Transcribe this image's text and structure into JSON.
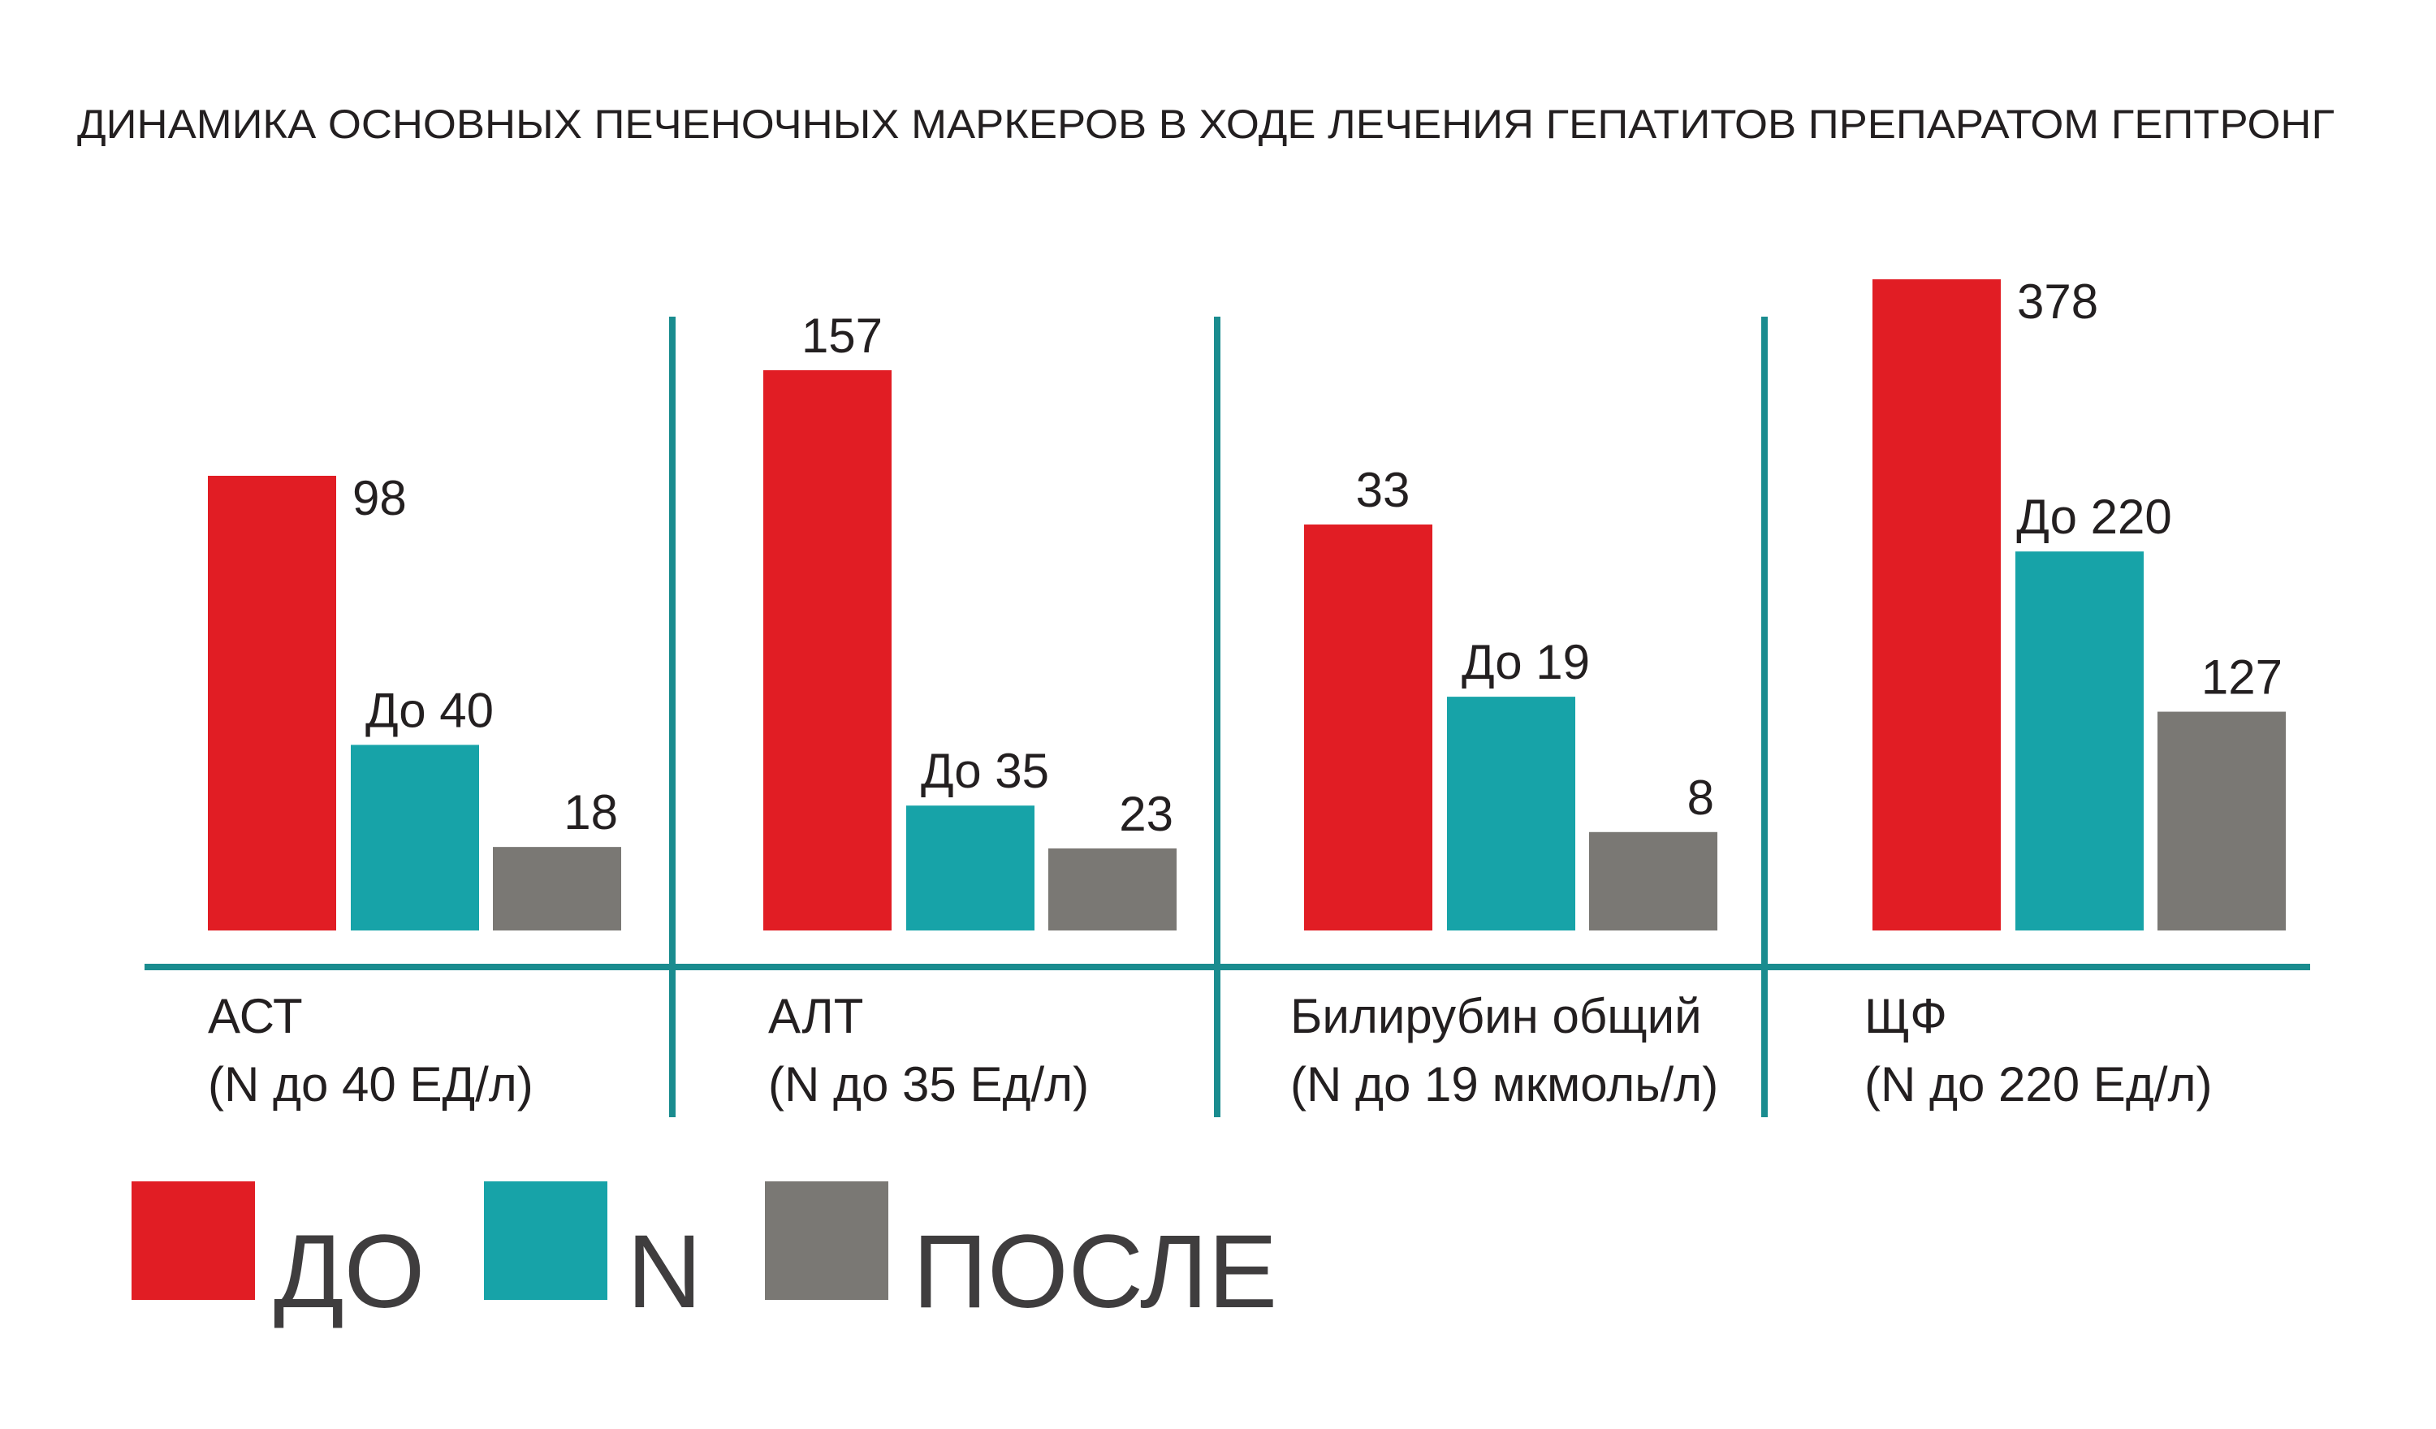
{
  "chart_data": {
    "type": "bar",
    "title": "ДИНАМИКА ОСНОВНЫХ ПЕЧЕНОЧНЫХ МАРКЕРОВ В ХОДЕ ЛЕЧЕНИЯ ГЕПАТИТОВ ПРЕПАРАТОМ ГЕПТРОНГ",
    "categories": [
      {
        "name": "АСТ",
        "norm": "(N до 40 ЕД/л)"
      },
      {
        "name": "АЛТ",
        "norm": "(N до 35 Ед/л)"
      },
      {
        "name": "Билирубин общий",
        "norm": "(N до 19 мкмоль/л)"
      },
      {
        "name": "ЩФ",
        "norm": "(N до 220 Ед/л)"
      }
    ],
    "series": [
      {
        "name": "ДО",
        "color": "#e11d24",
        "values": [
          98,
          157,
          33,
          378
        ],
        "labels": [
          "98",
          "157",
          "33",
          "378"
        ]
      },
      {
        "name": "N",
        "color": "#17a3a8",
        "values": [
          40,
          35,
          19,
          220
        ],
        "labels": [
          "До 40",
          "До 35",
          "До 19",
          "До 220"
        ]
      },
      {
        "name": "ПОСЛЕ",
        "color": "#7a7874",
        "values": [
          18,
          23,
          8,
          127
        ],
        "labels": [
          "18",
          "23",
          "8",
          "127"
        ]
      }
    ],
    "scale": "independent per category",
    "grid": false,
    "legend_position": "bottom-left",
    "divider_color": "#1a8c8f"
  }
}
